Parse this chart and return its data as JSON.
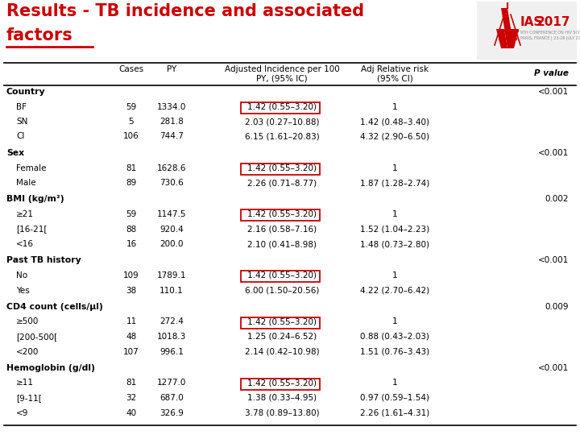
{
  "title_line1": "Results - TB incidence and associated",
  "title_line2": "factors",
  "title_color": "#CC0000",
  "background_color": "#FFFFFF",
  "sections": [
    {
      "label": "Country",
      "p_value": "<0.001",
      "rows": [
        {
          "label": "BF",
          "cases": "59",
          "py": "1334.0",
          "adj_inc": "1.42 (0.55–3.20)",
          "adj_rr": "1",
          "boxed": true
        },
        {
          "label": "SN",
          "cases": "5",
          "py": "281.8",
          "adj_inc": "2.03 (0.27–10.88)",
          "adj_rr": "1.42 (0.48–3.40)",
          "boxed": false
        },
        {
          "label": "CI",
          "cases": "106",
          "py": "744.7",
          "adj_inc": "6.15 (1.61–20.83)",
          "adj_rr": "4.32 (2.90–6.50)",
          "boxed": false
        }
      ]
    },
    {
      "label": "Sex",
      "p_value": "<0.001",
      "rows": [
        {
          "label": "Female",
          "cases": "81",
          "py": "1628.6",
          "adj_inc": "1.42 (0.55–3.20)",
          "adj_rr": "1",
          "boxed": true
        },
        {
          "label": "Male",
          "cases": "89",
          "py": "730.6",
          "adj_inc": "2.26 (0.71–8.77)",
          "adj_rr": "1.87 (1.28–2.74)",
          "boxed": false
        }
      ]
    },
    {
      "label": "BMI (kg/m²)",
      "p_value": "0.002",
      "rows": [
        {
          "label": "≥21",
          "cases": "59",
          "py": "1147.5",
          "adj_inc": "1.42 (0.55–3.20)",
          "adj_rr": "1",
          "boxed": true
        },
        {
          "label": "[16-21[",
          "cases": "88",
          "py": "920.4",
          "adj_inc": "2.16 (0.58–7.16)",
          "adj_rr": "1.52 (1.04–2.23)",
          "boxed": false
        },
        {
          "label": "<16",
          "cases": "16",
          "py": "200.0",
          "adj_inc": "2.10 (0.41–8.98)",
          "adj_rr": "1.48 (0.73–2.80)",
          "boxed": false
        }
      ]
    },
    {
      "label": "Past TB history",
      "p_value": "<0.001",
      "rows": [
        {
          "label": "No",
          "cases": "109",
          "py": "1789.1",
          "adj_inc": "1.42 (0.55–3.20)",
          "adj_rr": "1",
          "boxed": true
        },
        {
          "label": "Yes",
          "cases": "38",
          "py": "110.1",
          "adj_inc": "6.00 (1.50–20.56)",
          "adj_rr": "4.22 (2.70–6.42)",
          "boxed": false
        }
      ]
    },
    {
      "label": "CD4 count (cells/µl)",
      "p_value": "0.009",
      "rows": [
        {
          "label": "≥500",
          "cases": "11",
          "py": "272.4",
          "adj_inc": "1.42 (0.55–3.20)",
          "adj_rr": "1",
          "boxed": true
        },
        {
          "label": "[200-500[",
          "cases": "48",
          "py": "1018.3",
          "adj_inc": "1.25 (0.24–6.52)",
          "adj_rr": "0.88 (0.43–2.03)",
          "boxed": false
        },
        {
          "label": "<200",
          "cases": "107",
          "py": "996.1",
          "adj_inc": "2.14 (0.42–10.98)",
          "adj_rr": "1.51 (0.76–3.43)",
          "boxed": false
        }
      ]
    },
    {
      "label": "Hemoglobin (g/dl)",
      "p_value": "<0.001",
      "rows": [
        {
          "label": "≥11",
          "cases": "81",
          "py": "1277.0",
          "adj_inc": "1.42 (0.55–3.20)",
          "adj_rr": "1",
          "boxed": true
        },
        {
          "label": "[9-11[",
          "cases": "32",
          "py": "687.0",
          "adj_inc": "1.38 (0.33–4.95)",
          "adj_rr": "0.97 (0.59–1.54)",
          "boxed": false
        },
        {
          "label": "<9",
          "cases": "40",
          "py": "326.9",
          "adj_inc": "3.78 (0.89–13.80)",
          "adj_rr": "2.26 (1.61–4.31)",
          "boxed": false
        }
      ]
    }
  ],
  "box_color": "#CC0000",
  "font_size_header": 7.5,
  "font_size_body": 7.5,
  "font_size_title": 15,
  "font_size_section": 7.8
}
